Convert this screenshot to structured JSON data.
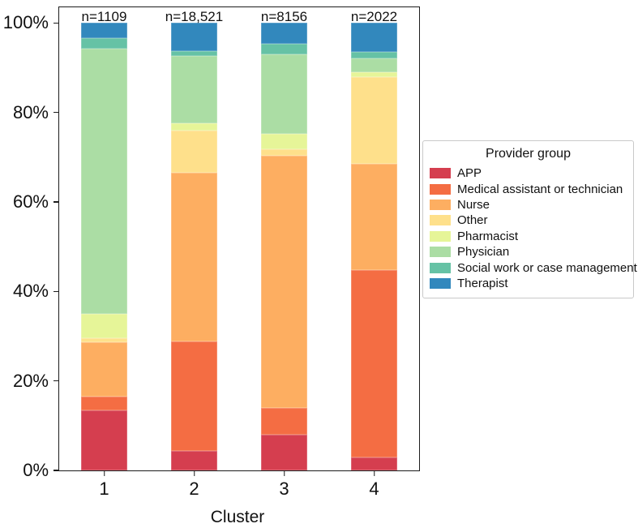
{
  "chart_data": {
    "type": "bar",
    "stacked": true,
    "normalized": "percent",
    "title": "",
    "xlabel": "Cluster",
    "ylabel": "",
    "grid": false,
    "legend": {
      "title": "Provider group",
      "position": "right"
    },
    "categories": [
      "1",
      "2",
      "3",
      "4"
    ],
    "bar_annotations": [
      "n=1109",
      "n=18,521",
      "n=8156",
      "n=2022"
    ],
    "y_ticks": [
      {
        "label": "0%",
        "value": 0
      },
      {
        "label": "20%",
        "value": 20
      },
      {
        "label": "40%",
        "value": 40
      },
      {
        "label": "60%",
        "value": 60
      },
      {
        "label": "80%",
        "value": 80
      },
      {
        "label": "100%",
        "value": 100
      }
    ],
    "ylim": [
      0,
      103.5
    ],
    "series": [
      {
        "name": "APP",
        "color": "#d53e4f",
        "values": [
          13.4,
          4.3,
          8.0,
          2.9
        ]
      },
      {
        "name": "Medical assistant or technician",
        "color": "#f46d43",
        "values": [
          3.1,
          24.5,
          5.9,
          41.9
        ]
      },
      {
        "name": "Nurse",
        "color": "#fdae61",
        "values": [
          12.1,
          37.7,
          56.4,
          23.8
        ]
      },
      {
        "name": "Other",
        "color": "#fee08b",
        "values": [
          0.9,
          9.4,
          1.5,
          19.4
        ]
      },
      {
        "name": "Pharmacist",
        "color": "#e6f598",
        "values": [
          5.5,
          1.6,
          3.4,
          1.0
        ]
      },
      {
        "name": "Physician",
        "color": "#abdda4",
        "values": [
          59.2,
          15.2,
          17.8,
          3.0
        ]
      },
      {
        "name": "Social work or case management",
        "color": "#66c2a5",
        "values": [
          2.4,
          1.1,
          2.4,
          1.5
        ]
      },
      {
        "name": "Therapist",
        "color": "#3288bd",
        "values": [
          3.4,
          6.2,
          4.6,
          6.5
        ]
      }
    ]
  }
}
